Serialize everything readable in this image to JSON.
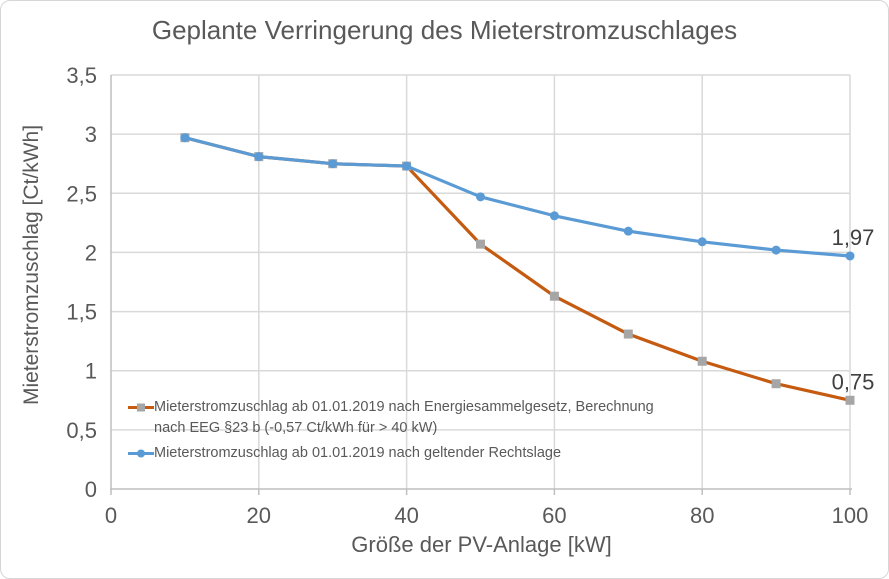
{
  "chart_data": {
    "type": "line",
    "title": "Geplante Verringerung des Mieterstromzuschlages",
    "xlabel": "Größe der PV-Anlage [kW]",
    "ylabel": "Mieterstromzuschlag [Ct/kWh]",
    "x": [
      10,
      20,
      30,
      40,
      50,
      60,
      70,
      80,
      90,
      100
    ],
    "xlim": [
      0,
      100
    ],
    "ylim": [
      0,
      3.5
    ],
    "grid": true,
    "legend_position": "inside-bottom-left",
    "x_ticks": [
      {
        "v": 0,
        "label": "0"
      },
      {
        "v": 20,
        "label": "20"
      },
      {
        "v": 40,
        "label": "40"
      },
      {
        "v": 60,
        "label": "60"
      },
      {
        "v": 80,
        "label": "80"
      },
      {
        "v": 100,
        "label": "100"
      }
    ],
    "y_ticks": [
      {
        "v": 0,
        "label": "0"
      },
      {
        "v": 0.5,
        "label": "0,5"
      },
      {
        "v": 1,
        "label": "1"
      },
      {
        "v": 1.5,
        "label": "1,5"
      },
      {
        "v": 2,
        "label": "2"
      },
      {
        "v": 2.5,
        "label": "2,5"
      },
      {
        "v": 3,
        "label": "3"
      },
      {
        "v": 3.5,
        "label": "3,5"
      }
    ],
    "series": [
      {
        "name": "Mieterstromzuschlag ab 01.01.2019 nach Energiesammelgesetz, Berechnung nach EEG §23 b (-0,57 Ct/kWh für > 40 kW)",
        "color": "#C55A11",
        "marker": "square",
        "marker_color": "#A6A6A6",
        "values": [
          2.97,
          2.81,
          2.75,
          2.73,
          2.07,
          1.63,
          1.31,
          1.08,
          0.89,
          0.75
        ],
        "end_label": "0,75"
      },
      {
        "name": "Mieterstromzuschlag ab 01.01.2019 nach geltender Rechtslage",
        "color": "#5B9BD5",
        "marker": "circle",
        "marker_color": "#5B9BD5",
        "values": [
          2.97,
          2.81,
          2.75,
          2.73,
          2.47,
          2.31,
          2.18,
          2.09,
          2.02,
          1.97
        ],
        "end_label": "1,97"
      }
    ],
    "colors": {
      "grid": "#D9D9D9",
      "axis": "#BFBFBF",
      "tick_text": "#595959",
      "title_text": "#595959",
      "data_label_text": "#404040"
    }
  }
}
